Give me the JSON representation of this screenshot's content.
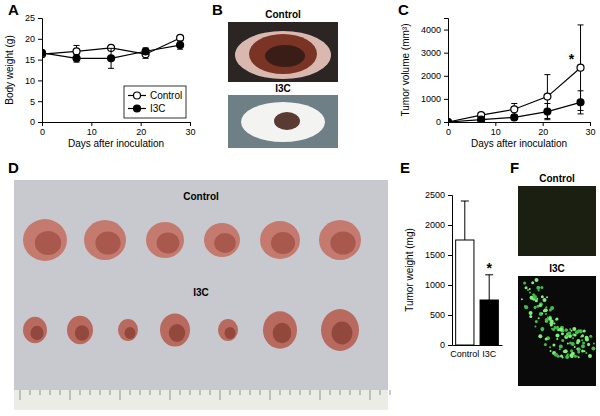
{
  "chart_data": [
    {
      "type": "line",
      "title": "A",
      "xlabel": "Days after inoculation",
      "ylabel": "Body weight (g)",
      "x": [
        0,
        7,
        14,
        21,
        28
      ],
      "xlim": [
        0,
        30
      ],
      "xticks": [
        0,
        10,
        20,
        30
      ],
      "ylim": [
        0,
        25
      ],
      "yticks": [
        0,
        5,
        10,
        15,
        20,
        25
      ],
      "legend": "lower right",
      "series": [
        {
          "name": "Control",
          "color": "#000000",
          "marker": "open_circle",
          "values": [
            16.3,
            17.0,
            17.8,
            16.3,
            20.2
          ],
          "errors": [
            0.6,
            1.4,
            0.5,
            1.0,
            0.6
          ]
        },
        {
          "name": "I3C",
          "color": "#000000",
          "marker": "circle",
          "values": [
            16.6,
            15.3,
            15.3,
            17.0,
            18.5
          ],
          "errors": [
            0.6,
            0.9,
            2.4,
            0.8,
            1.0
          ]
        }
      ]
    },
    {
      "type": "image",
      "title": "B",
      "labels": [
        "Control",
        "I3C"
      ]
    },
    {
      "type": "line",
      "title": "C",
      "xlabel": "Days after inoculation",
      "ylabel": "Tumor volume (mm³)",
      "x": [
        0,
        7,
        14,
        21,
        28
      ],
      "xlim": [
        0,
        30
      ],
      "xticks": [
        0,
        10,
        20,
        30
      ],
      "ylim": [
        0,
        4500
      ],
      "yticks": [
        0,
        1000,
        2000,
        3000,
        4000
      ],
      "annotation": "*",
      "series": [
        {
          "name": "Control",
          "color": "#000000",
          "marker": "open_circle",
          "values": [
            0,
            300,
            550,
            1100,
            2350
          ],
          "errors": [
            0,
            100,
            250,
            950,
            1850
          ]
        },
        {
          "name": "I3C",
          "color": "#000000",
          "marker": "circle",
          "values": [
            0,
            100,
            200,
            450,
            850
          ],
          "errors": [
            0,
            50,
            100,
            350,
            500
          ]
        }
      ]
    },
    {
      "type": "image",
      "title": "D",
      "labels": [
        "Control",
        "I3C"
      ]
    },
    {
      "type": "bar",
      "title": "E",
      "ylabel": "Tumor weight (mg)",
      "categories": [
        "Control",
        "I3C"
      ],
      "values": [
        1750,
        750
      ],
      "errors": [
        650,
        420
      ],
      "colors": [
        "#ffffff",
        "#000000"
      ],
      "ylim": [
        0,
        2500
      ],
      "yticks": [
        0,
        500,
        1000,
        1500,
        2000,
        2500
      ],
      "annotation": "*"
    },
    {
      "type": "image",
      "title": "F",
      "labels": [
        "Control",
        "I3C"
      ]
    }
  ]
}
